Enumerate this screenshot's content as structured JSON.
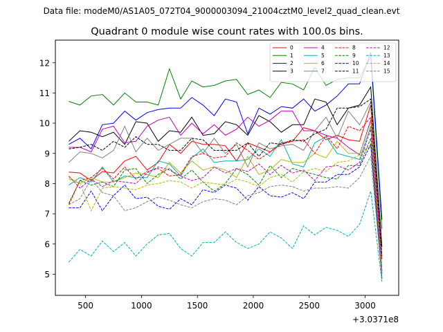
{
  "figure": {
    "suptitle": "Data file: modeM0/AS1A05_072T04_9000003094_21004cztM0_level2_quad_clean.evt"
  },
  "chart_data": {
    "type": "line",
    "title": "Quadrant 0 module wise count rates with 100.0s bins.",
    "xlabel": "",
    "ylabel": "",
    "offset_label": "+3.0371e8",
    "xlim": [
      230,
      3300
    ],
    "ylim": [
      4.3,
      12.75
    ],
    "xticks": [
      500,
      1000,
      1500,
      2000,
      2500,
      3000
    ],
    "yticks": [
      5,
      6,
      7,
      8,
      9,
      10,
      11,
      12
    ],
    "x": [
      350,
      450,
      550,
      650,
      750,
      850,
      950,
      1050,
      1150,
      1250,
      1350,
      1450,
      1550,
      1650,
      1750,
      1850,
      1950,
      2050,
      2150,
      2250,
      2350,
      2450,
      2550,
      2650,
      2750,
      2850,
      2950,
      3050,
      3150
    ],
    "legend": {
      "position": "top-right",
      "columns": 4
    },
    "series": [
      {
        "name": "0",
        "color": "#ff0000",
        "dash": "solid",
        "values": [
          8.38,
          8.35,
          8.1,
          8.4,
          8.35,
          8.75,
          8.9,
          8.45,
          8.7,
          9.3,
          9.0,
          9.4,
          9.3,
          9.3,
          9.25,
          8.75,
          9.35,
          9.2,
          9.05,
          9.35,
          9.4,
          9.85,
          9.75,
          9.45,
          9.6,
          9.45,
          9.4,
          10.6,
          5.1
        ]
      },
      {
        "name": "1",
        "color": "#008000",
        "dash": "solid",
        "values": [
          10.72,
          10.6,
          10.9,
          10.95,
          10.6,
          11.0,
          10.7,
          10.7,
          10.6,
          11.8,
          10.8,
          11.4,
          11.2,
          11.25,
          11.4,
          11.45,
          10.95,
          11.1,
          10.85,
          11.35,
          11.3,
          11.1,
          11.85,
          11.25,
          11.45,
          11.5,
          11.5,
          12.2,
          6.5
        ]
      },
      {
        "name": "2",
        "color": "#0000ff",
        "dash": "solid",
        "values": [
          9.3,
          9.5,
          9.15,
          9.95,
          10.0,
          10.4,
          10.1,
          10.35,
          10.45,
          10.5,
          10.5,
          10.85,
          10.6,
          10.25,
          10.8,
          10.7,
          9.65,
          10.5,
          10.3,
          10.55,
          10.5,
          10.8,
          10.4,
          10.6,
          10.9,
          11.3,
          11.3,
          12.35,
          6.8
        ]
      },
      {
        "name": "3",
        "color": "#000000",
        "dash": "solid",
        "values": [
          9.4,
          9.75,
          9.7,
          9.55,
          9.7,
          9.3,
          10.05,
          10.0,
          9.4,
          9.75,
          9.7,
          10.2,
          9.6,
          9.65,
          10.05,
          9.95,
          9.6,
          10.25,
          10.05,
          9.7,
          9.95,
          9.95,
          10.8,
          10.7,
          9.95,
          10.5,
          10.6,
          11.2,
          5.9
        ]
      },
      {
        "name": "4",
        "color": "#c000c0",
        "dash": "solid",
        "values": [
          9.2,
          9.2,
          9.05,
          9.8,
          9.9,
          9.35,
          9.4,
          9.9,
          10.1,
          10.2,
          9.6,
          10.0,
          9.65,
          9.95,
          9.6,
          9.8,
          10.2,
          9.9,
          10.1,
          10.4,
          10.4,
          9.75,
          9.75,
          9.6,
          9.5,
          9.2,
          8.95,
          10.1,
          5.5
        ]
      },
      {
        "name": "5",
        "color": "#00b0b0",
        "dash": "solid",
        "values": [
          7.95,
          8.2,
          8.05,
          8.55,
          8.05,
          8.25,
          8.2,
          8.2,
          8.75,
          8.65,
          8.25,
          8.85,
          9.15,
          8.7,
          8.75,
          8.75,
          8.8,
          9.15,
          8.9,
          9.45,
          8.65,
          8.55,
          9.35,
          9.55,
          9.0,
          8.9,
          8.8,
          9.9,
          5.1
        ]
      },
      {
        "name": "6",
        "color": "#b8b800",
        "dash": "solid",
        "values": [
          8.2,
          8.0,
          8.2,
          8.05,
          8.05,
          8.2,
          8.35,
          8.3,
          8.2,
          8.7,
          8.35,
          8.75,
          8.45,
          8.55,
          8.45,
          8.2,
          8.9,
          8.3,
          8.45,
          8.8,
          8.7,
          8.7,
          9.0,
          8.85,
          9.4,
          9.0,
          9.0,
          9.25,
          5.0
        ]
      },
      {
        "name": "7",
        "color": "#808080",
        "dash": "solid",
        "values": [
          8.7,
          9.05,
          9.0,
          8.85,
          9.1,
          9.9,
          9.05,
          9.5,
          9.1,
          9.3,
          9.5,
          9.5,
          9.0,
          9.5,
          9.0,
          9.3,
          8.55,
          9.35,
          9.15,
          9.25,
          9.3,
          9.1,
          9.75,
          10.2,
          9.5,
          10.4,
          9.95,
          10.7,
          5.6
        ]
      },
      {
        "name": "8",
        "color": "#ff0000",
        "dash": "dashed",
        "values": [
          7.3,
          8.1,
          8.2,
          8.5,
          8.15,
          8.55,
          8.15,
          8.4,
          8.5,
          8.25,
          8.3,
          8.9,
          9.0,
          8.85,
          8.9,
          9.35,
          9.1,
          8.8,
          9.05,
          9.3,
          9.4,
          9.45,
          9.0,
          9.6,
          9.15,
          9.9,
          9.75,
          10.2,
          5.2
        ]
      },
      {
        "name": "9",
        "color": "#008000",
        "dash": "dashed",
        "values": [
          7.35,
          8.1,
          7.95,
          8.05,
          7.9,
          8.45,
          8.5,
          8.0,
          8.3,
          8.5,
          8.15,
          8.45,
          8.05,
          7.75,
          8.0,
          8.5,
          8.3,
          7.95,
          8.6,
          8.2,
          8.5,
          8.4,
          8.3,
          8.2,
          8.15,
          8.6,
          8.6,
          9.5,
          5.0
        ]
      },
      {
        "name": "10",
        "color": "#0000ff",
        "dash": "dashed",
        "values": [
          7.2,
          7.2,
          7.75,
          7.1,
          7.6,
          7.95,
          7.5,
          7.55,
          7.25,
          7.15,
          7.5,
          7.3,
          7.8,
          7.7,
          7.95,
          7.85,
          7.45,
          7.9,
          7.6,
          7.55,
          7.7,
          7.5,
          8.05,
          8.05,
          8.3,
          8.3,
          8.55,
          9.3,
          4.85
        ]
      },
      {
        "name": "11",
        "color": "#000000",
        "dash": "dashed",
        "values": [
          9.15,
          9.2,
          9.3,
          9.1,
          9.4,
          9.2,
          9.55,
          9.3,
          9.3,
          9.1,
          9.1,
          9.5,
          9.45,
          9.1,
          9.1,
          9.1,
          9.35,
          8.9,
          9.35,
          9.3,
          9.45,
          9.4,
          9.65,
          9.8,
          10.5,
          10.5,
          10.55,
          10.8,
          5.6
        ]
      },
      {
        "name": "12",
        "color": "#c000c0",
        "dash": "dashed",
        "values": [
          8.25,
          7.85,
          8.15,
          7.9,
          8.1,
          8.05,
          8.0,
          8.35,
          8.55,
          8.45,
          8.25,
          8.1,
          8.2,
          8.55,
          8.35,
          8.5,
          8.4,
          8.65,
          8.3,
          8.6,
          8.35,
          8.45,
          8.1,
          8.55,
          8.6,
          8.45,
          8.7,
          9.8,
          5.05
        ]
      },
      {
        "name": "13",
        "color": "#00b0b0",
        "dash": "dashed",
        "values": [
          5.4,
          5.82,
          5.6,
          6.1,
          5.75,
          6.05,
          5.6,
          6.0,
          6.3,
          6.35,
          5.85,
          5.6,
          6.05,
          6.05,
          6.4,
          6.05,
          5.85,
          6.0,
          6.4,
          6.2,
          5.85,
          6.6,
          6.3,
          6.55,
          6.45,
          6.25,
          6.65,
          7.75,
          4.75
        ]
      },
      {
        "name": "14",
        "color": "#b8b800",
        "dash": "dashed",
        "values": [
          8.15,
          8.0,
          7.1,
          7.85,
          7.9,
          7.85,
          7.8,
          7.95,
          8.0,
          8.1,
          8.05,
          7.85,
          8.05,
          8.0,
          7.95,
          8.15,
          8.05,
          7.9,
          8.2,
          8.3,
          8.05,
          8.4,
          8.5,
          8.4,
          8.7,
          8.75,
          8.95,
          10.05,
          5.05
        ]
      },
      {
        "name": "15",
        "color": "#808080",
        "dash": "dashed",
        "values": [
          7.3,
          7.5,
          8.15,
          7.7,
          7.6,
          7.1,
          7.2,
          7.4,
          7.55,
          7.45,
          7.3,
          7.2,
          7.4,
          7.5,
          7.45,
          7.3,
          7.6,
          7.7,
          7.9,
          7.95,
          7.9,
          7.75,
          7.85,
          7.85,
          7.9,
          7.85,
          8.2,
          8.9,
          4.9
        ]
      }
    ]
  }
}
